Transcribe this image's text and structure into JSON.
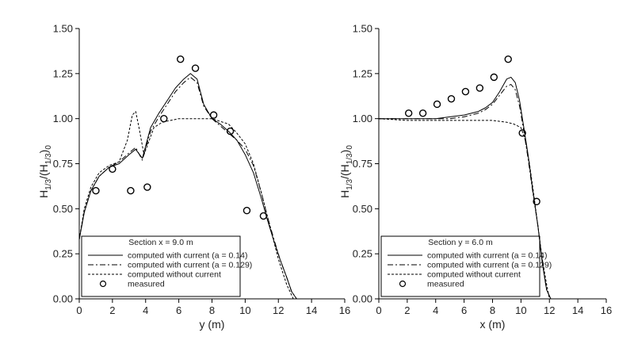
{
  "chart_data": [
    {
      "type": "line",
      "xlabel": "y (m)",
      "ylabel": "H1/3/(H1/3)0",
      "xlim": [
        0,
        16
      ],
      "ylim": [
        0,
        1.5
      ],
      "xticks": [
        "0",
        "2",
        "4",
        "6",
        "8",
        "10",
        "12",
        "14",
        "16"
      ],
      "yticks": [
        "0.00",
        "0.25",
        "0.50",
        "0.75",
        "1.00",
        "1.25",
        "1.50"
      ],
      "legend_title": "Section x = 9.0 m",
      "legend_position": "bottom-left",
      "series": [
        {
          "name": "computed with current (a = 0.14)",
          "style": "solid",
          "x": [
            0,
            0.3,
            0.7,
            1.2,
            1.8,
            2.4,
            3.0,
            3.4,
            3.8,
            4.3,
            4.8,
            5.3,
            5.8,
            6.3,
            6.7,
            7.1,
            7.5,
            8.0,
            8.5,
            9.0,
            9.5,
            10.0,
            10.5,
            11.0,
            11.3,
            11.7,
            12.1,
            12.5,
            12.8,
            13.1
          ],
          "values": [
            0.33,
            0.48,
            0.6,
            0.68,
            0.73,
            0.75,
            0.8,
            0.83,
            0.78,
            0.95,
            1.03,
            1.1,
            1.17,
            1.22,
            1.25,
            1.22,
            1.08,
            1.0,
            0.97,
            0.93,
            0.88,
            0.8,
            0.7,
            0.55,
            0.45,
            0.33,
            0.22,
            0.12,
            0.04,
            0.0
          ]
        },
        {
          "name": "computed with current (a = 0.129)",
          "style": "dashdot",
          "x": [
            0,
            0.3,
            0.7,
            1.2,
            1.8,
            2.4,
            3.0,
            3.4,
            3.8,
            4.3,
            4.8,
            5.3,
            5.8,
            6.3,
            6.7,
            7.1,
            7.5,
            8.0,
            8.5,
            9.0,
            9.5,
            10.0,
            10.5,
            11.0,
            11.3,
            11.7,
            12.1,
            12.5,
            12.8,
            13.1
          ],
          "values": [
            0.33,
            0.48,
            0.6,
            0.68,
            0.73,
            0.76,
            0.81,
            0.84,
            0.77,
            0.93,
            1.01,
            1.08,
            1.15,
            1.2,
            1.23,
            1.2,
            1.07,
            1.0,
            0.96,
            0.92,
            0.88,
            0.83,
            0.74,
            0.58,
            0.47,
            0.34,
            0.22,
            0.12,
            0.04,
            0.0
          ]
        },
        {
          "name": "computed without current",
          "style": "dashed",
          "x": [
            0,
            0.3,
            0.7,
            1.2,
            1.8,
            2.4,
            2.9,
            3.2,
            3.4,
            3.6,
            3.9,
            4.5,
            5.0,
            5.5,
            6.0,
            7.0,
            8.0,
            9.0,
            9.5,
            10.0,
            10.5,
            11.0,
            11.5,
            12.0,
            12.5,
            12.9
          ],
          "values": [
            0.33,
            0.5,
            0.62,
            0.7,
            0.74,
            0.76,
            0.88,
            1.02,
            1.04,
            0.95,
            0.8,
            0.95,
            0.98,
            0.99,
            1.0,
            1.0,
            1.0,
            0.97,
            0.92,
            0.86,
            0.75,
            0.58,
            0.4,
            0.22,
            0.08,
            0.0
          ]
        },
        {
          "name": "measured",
          "style": "circle",
          "x": [
            1.0,
            2.0,
            3.1,
            4.1,
            5.1,
            6.1,
            7.0,
            8.1,
            9.1,
            10.1,
            11.1
          ],
          "values": [
            0.6,
            0.72,
            0.6,
            0.62,
            1.0,
            1.33,
            1.28,
            1.02,
            0.93,
            0.49,
            0.46
          ]
        }
      ]
    },
    {
      "type": "line",
      "xlabel": "x (m)",
      "ylabel": "H1/3/(H1/3)0",
      "xlim": [
        0,
        16
      ],
      "ylim": [
        0,
        1.5
      ],
      "xticks": [
        "0",
        "2",
        "4",
        "6",
        "8",
        "10",
        "12",
        "14",
        "16"
      ],
      "yticks": [
        "0.00",
        "0.25",
        "0.50",
        "0.75",
        "1.00",
        "1.25",
        "1.50"
      ],
      "legend_title": "Section y = 6.0 m",
      "legend_position": "bottom-left",
      "series": [
        {
          "name": "computed with current (a = 0.14)",
          "style": "solid",
          "x": [
            0,
            2,
            4,
            5,
            6,
            7,
            7.5,
            8,
            8.5,
            9.0,
            9.3,
            9.6,
            9.9,
            10.2,
            10.5,
            10.8,
            11.2,
            11.5,
            11.8,
            12.1
          ],
          "values": [
            1.0,
            1.0,
            1.0,
            1.01,
            1.02,
            1.04,
            1.06,
            1.09,
            1.15,
            1.22,
            1.23,
            1.2,
            1.1,
            0.95,
            0.8,
            0.62,
            0.4,
            0.2,
            0.05,
            0.0
          ]
        },
        {
          "name": "computed with current (a = 0.129)",
          "style": "dashdot",
          "x": [
            0,
            2,
            4,
            5,
            6,
            7,
            7.5,
            8,
            8.5,
            9.0,
            9.3,
            9.6,
            9.9,
            10.2,
            10.5,
            10.8,
            11.2,
            11.5,
            11.8,
            12.1
          ],
          "values": [
            1.0,
            1.0,
            1.0,
            1.0,
            1.01,
            1.03,
            1.05,
            1.08,
            1.13,
            1.18,
            1.19,
            1.16,
            1.07,
            0.93,
            0.78,
            0.61,
            0.4,
            0.2,
            0.05,
            0.0
          ]
        },
        {
          "name": "computed without current",
          "style": "dashed",
          "x": [
            0,
            2,
            4,
            6,
            8,
            9,
            9.5,
            10.0,
            10.3,
            10.6,
            10.9,
            11.2,
            11.5,
            11.8,
            12.0
          ],
          "values": [
            1.0,
            0.99,
            0.99,
            0.99,
            0.99,
            0.98,
            0.97,
            0.95,
            0.88,
            0.75,
            0.58,
            0.4,
            0.22,
            0.08,
            0.0
          ]
        },
        {
          "name": "measured",
          "style": "circle",
          "x": [
            2.1,
            3.1,
            4.1,
            5.1,
            6.1,
            7.1,
            8.1,
            9.1,
            10.1,
            11.1
          ],
          "values": [
            1.03,
            1.03,
            1.08,
            1.11,
            1.15,
            1.17,
            1.23,
            1.33,
            0.92,
            0.54
          ]
        }
      ]
    }
  ]
}
